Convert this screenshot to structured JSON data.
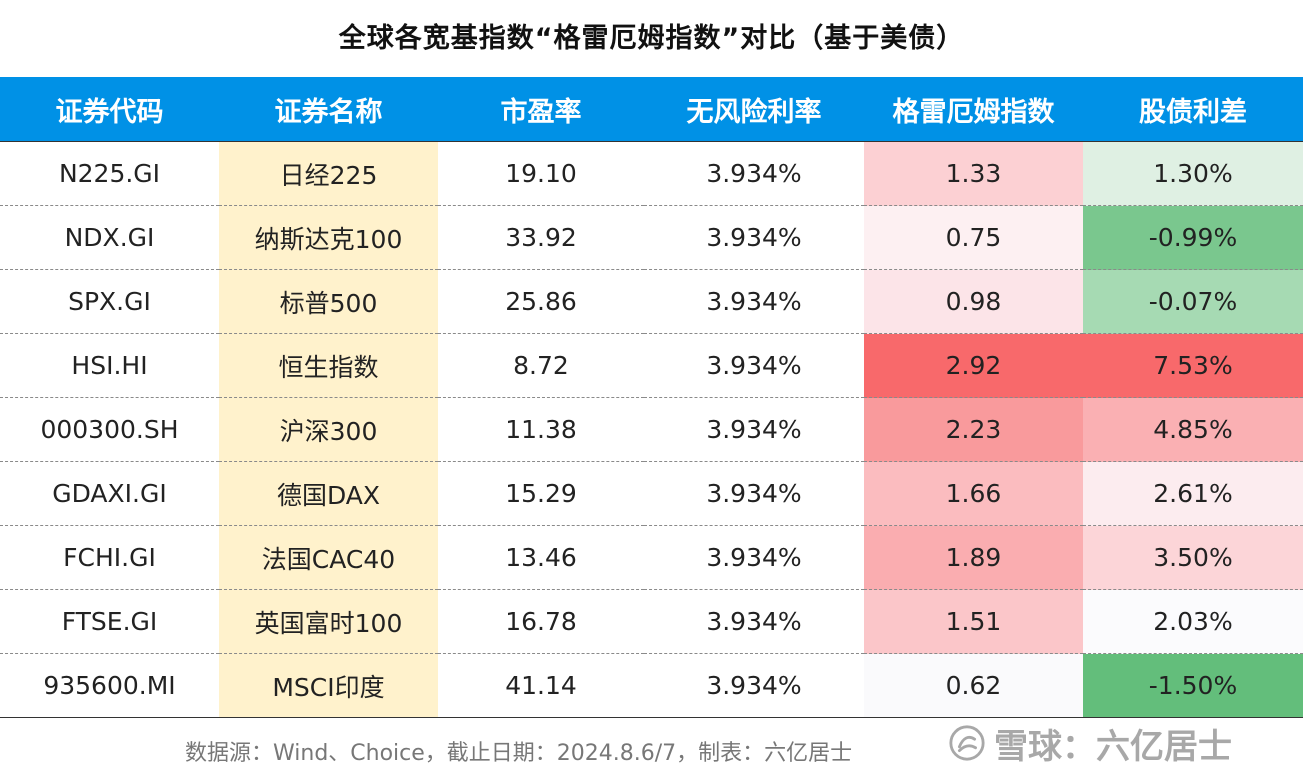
{
  "title": "全球各宽基指数“格雷厄姆指数”对比（基于美债）",
  "colors": {
    "header_bg": "#0091e6",
    "name_col_bg": "#fff2cc",
    "graham_hi": "#f8696b",
    "spread_lo": "#63be7b"
  },
  "headers": [
    "证券代码",
    "证券名称",
    "市盈率",
    "无风险利率",
    "格雷厄姆指数",
    "股债利差"
  ],
  "rows": [
    {
      "code": "N225.GI",
      "name": "日经225",
      "pe": "19.10",
      "rf": "3.934%",
      "graham": "1.33",
      "spread": "1.30%",
      "graham_bg": "#fcd0d3",
      "spread_bg": "#dff0e3"
    },
    {
      "code": "NDX.GI",
      "name": "纳斯达克100",
      "pe": "33.92",
      "rf": "3.934%",
      "graham": "0.75",
      "spread": "-0.99%",
      "graham_bg": "#fdf0f2",
      "spread_bg": "#7ac78e"
    },
    {
      "code": "SPX.GI",
      "name": "标普500",
      "pe": "25.86",
      "rf": "3.934%",
      "graham": "0.98",
      "spread": "-0.07%",
      "graham_bg": "#fce4e8",
      "spread_bg": "#a6dab3"
    },
    {
      "code": "HSI.HI",
      "name": "恒生指数",
      "pe": "8.72",
      "rf": "3.934%",
      "graham": "2.92",
      "spread": "7.53%",
      "graham_bg": "#f8696b",
      "spread_bg": "#f8696b"
    },
    {
      "code": "000300.SH",
      "name": "沪深300",
      "pe": "11.38",
      "rf": "3.934%",
      "graham": "2.23",
      "spread": "4.85%",
      "graham_bg": "#f99a9c",
      "spread_bg": "#fab0b3"
    },
    {
      "code": "GDAXI.GI",
      "name": "德国DAX",
      "pe": "15.29",
      "rf": "3.934%",
      "graham": "1.66",
      "spread": "2.61%",
      "graham_bg": "#fbbcbf",
      "spread_bg": "#fcecef"
    },
    {
      "code": "FCHI.GI",
      "name": "法国CAC40",
      "pe": "13.46",
      "rf": "3.934%",
      "graham": "1.89",
      "spread": "3.50%",
      "graham_bg": "#faadb0",
      "spread_bg": "#fcd5d8"
    },
    {
      "code": "FTSE.GI",
      "name": "英国富时100",
      "pe": "16.78",
      "rf": "3.934%",
      "graham": "1.51",
      "spread": "2.03%",
      "graham_bg": "#fbc6c9",
      "spread_bg": "#fbfbfd"
    },
    {
      "code": "935600.MI",
      "name": "MSCI印度",
      "pe": "41.14",
      "rf": "3.934%",
      "graham": "0.62",
      "spread": "-1.50%",
      "graham_bg": "#fafafc",
      "spread_bg": "#63be7b"
    }
  ],
  "footer": "数据源：Wind、Choice，截止日期：2024.8.6/7，制表：六亿居士",
  "watermark": {
    "icon": "snowball-logo-icon",
    "text": "雪球：六亿居士"
  }
}
